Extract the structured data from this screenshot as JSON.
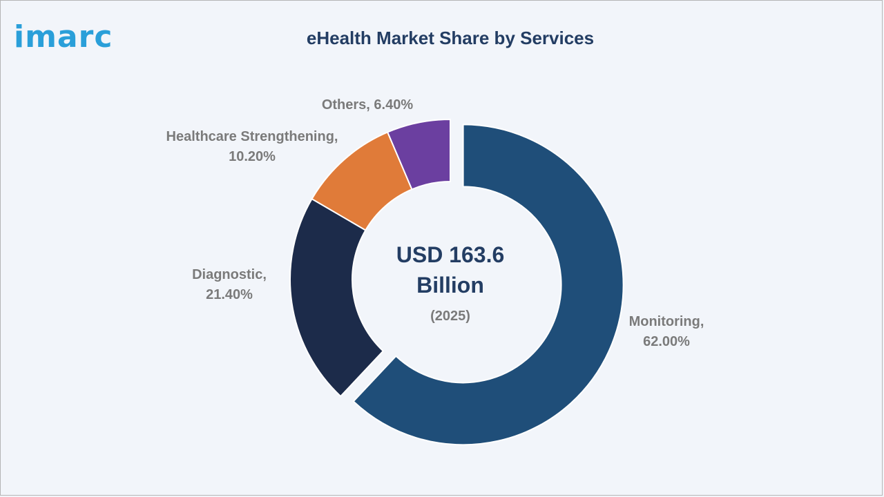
{
  "brand": {
    "logo_text": "imarc",
    "logo_color": "#2a9fd9"
  },
  "chart_data": {
    "type": "pie",
    "variant": "donut",
    "title": "eHealth Market Share by Services",
    "center_label": {
      "value": "USD 163.6",
      "unit": "Billion",
      "year": "(2025)"
    },
    "categories": [
      "Monitoring",
      "Diagnostic",
      "Healthcare Strengthening",
      "Others"
    ],
    "values": [
      62.0,
      21.4,
      10.2,
      6.4
    ],
    "labels": [
      [
        "Monitoring,",
        "62.00%"
      ],
      [
        "Diagnostic,",
        "21.40%"
      ],
      [
        "Healthcare Strengthening,",
        "10.20%"
      ],
      [
        "Others, 6.40%"
      ]
    ],
    "colors": [
      "#1f4e79",
      "#1c2b4a",
      "#e07b39",
      "#6b3fa0"
    ],
    "exploded": "Monitoring",
    "legend": "none"
  }
}
